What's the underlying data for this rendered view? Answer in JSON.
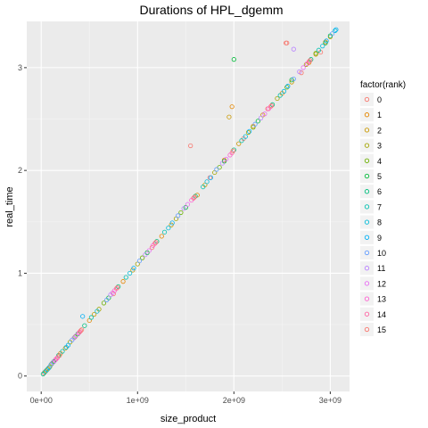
{
  "chart_data": {
    "type": "scatter",
    "title": "Durations of HPL_dgemm",
    "xlabel": "size_product",
    "ylabel": "real_time",
    "xlim": [
      -150000000,
      3200000000
    ],
    "ylim": [
      -0.15,
      3.45
    ],
    "x_ticks": [
      0,
      1000000000,
      2000000000,
      3000000000
    ],
    "x_tick_labels": [
      "0e+00",
      "1e+09",
      "2e+09",
      "3e+09"
    ],
    "y_ticks": [
      0,
      1,
      2,
      3
    ],
    "y_tick_labels": [
      "0",
      "1",
      "2",
      "3"
    ],
    "grid": true,
    "legend_position": "right",
    "legend": {
      "title": "factor(rank)",
      "entries": [
        "0",
        "1",
        "2",
        "3",
        "4",
        "5",
        "6",
        "7",
        "8",
        "9",
        "10",
        "11",
        "12",
        "13",
        "14",
        "15"
      ]
    },
    "colors": [
      "#F8766D",
      "#E58700",
      "#C99800",
      "#A3A500",
      "#6BB100",
      "#00BA38",
      "#00BF7D",
      "#00C0AF",
      "#00BCD8",
      "#00B0F6",
      "#619CFF",
      "#B983FF",
      "#E76BF3",
      "#FD61D1",
      "#FF67A4",
      "#F8766D"
    ],
    "series": [
      {
        "name": "0",
        "points": [
          [
            30000000,
            0.03
          ],
          [
            150000000,
            0.16
          ],
          [
            420000000,
            0.45
          ],
          [
            750000000,
            0.8
          ],
          [
            1150000000,
            1.25
          ],
          [
            1550000000,
            2.24
          ],
          [
            1750000000,
            1.93
          ],
          [
            2100000000,
            2.31
          ],
          [
            2350000000,
            2.6
          ],
          [
            2550000000,
            3.24
          ],
          [
            2700000000,
            2.95
          ],
          [
            2900000000,
            3.15
          ]
        ]
      },
      {
        "name": "1",
        "points": [
          [
            50000000,
            0.05
          ],
          [
            200000000,
            0.22
          ],
          [
            500000000,
            0.54
          ],
          [
            850000000,
            0.92
          ],
          [
            1250000000,
            1.36
          ],
          [
            1620000000,
            1.76
          ],
          [
            1900000000,
            2.1
          ],
          [
            1980000000,
            2.62
          ],
          [
            2200000000,
            2.43
          ],
          [
            2500000000,
            2.75
          ],
          [
            2780000000,
            3.05
          ],
          [
            2950000000,
            3.25
          ]
        ]
      },
      {
        "name": "2",
        "points": [
          [
            70000000,
            0.07
          ],
          [
            250000000,
            0.27
          ],
          [
            550000000,
            0.6
          ],
          [
            950000000,
            1.03
          ],
          [
            1350000000,
            1.47
          ],
          [
            1700000000,
            1.86
          ],
          [
            1950000000,
            2.52
          ],
          [
            2050000000,
            2.26
          ],
          [
            2300000000,
            2.54
          ],
          [
            2600000000,
            2.86
          ],
          [
            2850000000,
            3.13
          ],
          [
            3000000000,
            3.3
          ]
        ]
      },
      {
        "name": "3",
        "points": [
          [
            90000000,
            0.09
          ],
          [
            300000000,
            0.33
          ],
          [
            600000000,
            0.65
          ],
          [
            1000000000,
            1.09
          ],
          [
            1400000000,
            1.53
          ],
          [
            1800000000,
            1.98
          ],
          [
            2150000000,
            2.37
          ],
          [
            2450000000,
            2.7
          ],
          [
            2750000000,
            3.03
          ]
        ]
      },
      {
        "name": "4",
        "points": [
          [
            110000000,
            0.12
          ],
          [
            350000000,
            0.38
          ],
          [
            650000000,
            0.71
          ],
          [
            1050000000,
            1.15
          ],
          [
            1450000000,
            1.59
          ],
          [
            1850000000,
            2.03
          ],
          [
            2200000000,
            2.42
          ],
          [
            2550000000,
            2.81
          ],
          [
            2850000000,
            3.14
          ]
        ]
      },
      {
        "name": "5",
        "points": [
          [
            130000000,
            0.14
          ],
          [
            380000000,
            0.41
          ],
          [
            700000000,
            0.76
          ],
          [
            1100000000,
            1.2
          ],
          [
            1500000000,
            1.64
          ],
          [
            1900000000,
            2.09
          ],
          [
            2000000000,
            3.08
          ],
          [
            2250000000,
            2.48
          ],
          [
            2600000000,
            2.88
          ],
          [
            2950000000,
            3.24
          ]
        ]
      },
      {
        "name": "6",
        "points": [
          [
            20000000,
            0.02
          ],
          [
            180000000,
            0.2
          ],
          [
            450000000,
            0.49
          ],
          [
            800000000,
            0.87
          ],
          [
            1200000000,
            1.31
          ],
          [
            1600000000,
            1.75
          ],
          [
            2000000000,
            2.2
          ],
          [
            2400000000,
            2.64
          ],
          [
            2800000000,
            3.08
          ],
          [
            3000000000,
            3.31
          ]
        ]
      },
      {
        "name": "7",
        "points": [
          [
            40000000,
            0.04
          ],
          [
            220000000,
            0.24
          ],
          [
            520000000,
            0.57
          ],
          [
            880000000,
            0.96
          ],
          [
            1280000000,
            1.4
          ],
          [
            1680000000,
            1.84
          ],
          [
            2080000000,
            2.29
          ],
          [
            2480000000,
            2.73
          ],
          [
            2880000000,
            3.17
          ]
        ]
      },
      {
        "name": "8",
        "points": [
          [
            60000000,
            0.06
          ],
          [
            260000000,
            0.28
          ],
          [
            580000000,
            0.63
          ],
          [
            920000000,
            1.0
          ],
          [
            1320000000,
            1.44
          ],
          [
            1720000000,
            1.89
          ],
          [
            2120000000,
            2.33
          ],
          [
            2520000000,
            2.77
          ],
          [
            2920000000,
            3.21
          ],
          [
            3050000000,
            3.36
          ]
        ]
      },
      {
        "name": "9",
        "points": [
          [
            80000000,
            0.08
          ],
          [
            280000000,
            0.3
          ],
          [
            430000000,
            0.58
          ],
          [
            960000000,
            1.05
          ],
          [
            1360000000,
            1.49
          ],
          [
            1760000000,
            1.93
          ],
          [
            2160000000,
            2.38
          ],
          [
            2560000000,
            2.82
          ],
          [
            2960000000,
            3.26
          ],
          [
            3060000000,
            3.37
          ]
        ]
      },
      {
        "name": "10",
        "points": [
          [
            100000000,
            0.11
          ],
          [
            320000000,
            0.35
          ],
          [
            680000000,
            0.74
          ],
          [
            1020000000,
            1.12
          ],
          [
            1420000000,
            1.56
          ],
          [
            1820000000,
            2.01
          ],
          [
            2220000000,
            2.45
          ],
          [
            2620000000,
            2.89
          ],
          [
            3020000000,
            3.33
          ]
        ]
      },
      {
        "name": "11",
        "points": [
          [
            120000000,
            0.13
          ],
          [
            340000000,
            0.37
          ],
          [
            720000000,
            0.79
          ],
          [
            1080000000,
            1.18
          ],
          [
            1480000000,
            1.63
          ],
          [
            1880000000,
            2.07
          ],
          [
            2280000000,
            2.51
          ],
          [
            2680000000,
            2.96
          ],
          [
            2620000000,
            3.18
          ]
        ]
      },
      {
        "name": "12",
        "points": [
          [
            140000000,
            0.15
          ],
          [
            360000000,
            0.39
          ],
          [
            740000000,
            0.81
          ],
          [
            1120000000,
            1.22
          ],
          [
            1520000000,
            1.67
          ],
          [
            1920000000,
            2.11
          ],
          [
            2320000000,
            2.55
          ],
          [
            2720000000,
            3.0
          ]
        ]
      },
      {
        "name": "13",
        "points": [
          [
            160000000,
            0.17
          ],
          [
            390000000,
            0.42
          ],
          [
            760000000,
            0.83
          ],
          [
            1160000000,
            1.27
          ],
          [
            1560000000,
            1.71
          ],
          [
            1960000000,
            2.15
          ],
          [
            2360000000,
            2.6
          ],
          [
            2760000000,
            3.04
          ]
        ]
      },
      {
        "name": "14",
        "points": [
          [
            170000000,
            0.18
          ],
          [
            400000000,
            0.43
          ],
          [
            780000000,
            0.85
          ],
          [
            1180000000,
            1.29
          ],
          [
            1580000000,
            1.73
          ],
          [
            1980000000,
            2.17
          ],
          [
            2380000000,
            2.62
          ],
          [
            2780000000,
            3.06
          ]
        ]
      },
      {
        "name": "15",
        "points": [
          [
            190000000,
            0.2
          ],
          [
            410000000,
            0.44
          ],
          [
            790000000,
            0.86
          ],
          [
            1190000000,
            1.3
          ],
          [
            1590000000,
            1.74
          ],
          [
            1990000000,
            2.19
          ],
          [
            2390000000,
            2.63
          ],
          [
            2540000000,
            3.24
          ],
          [
            2790000000,
            3.07
          ]
        ]
      }
    ]
  }
}
